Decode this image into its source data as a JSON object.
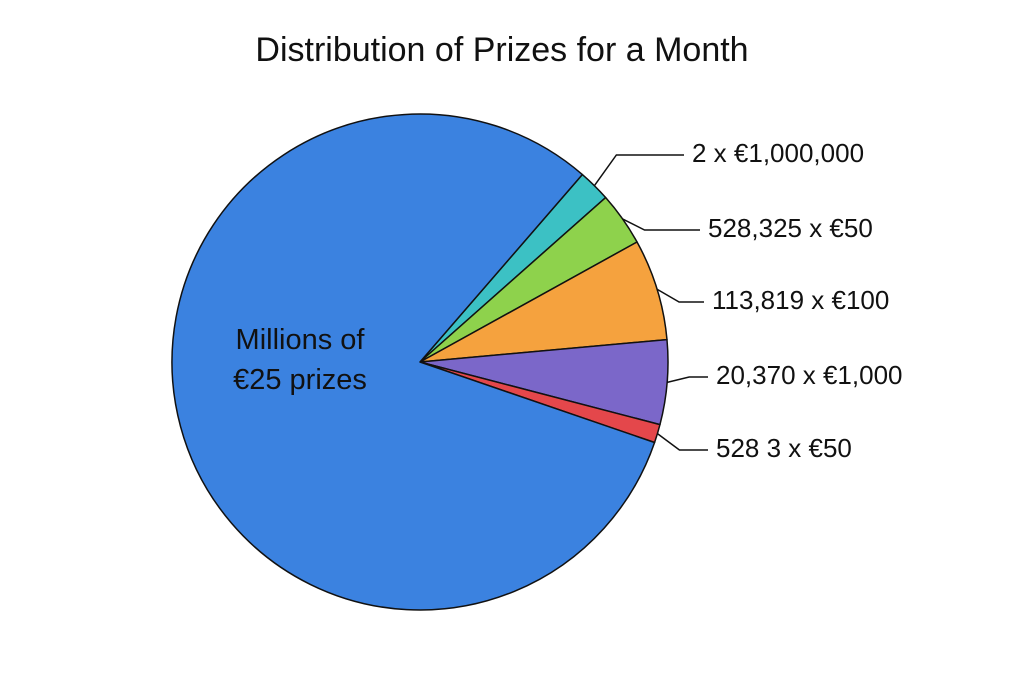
{
  "chart_data": {
    "type": "pie",
    "title": "Distribution of Prizes for a Month",
    "categories": [
      "2 x €1,000,000",
      "528,325 x €50",
      "113,819 x €100",
      "20,370 x €1,000",
      "528 3 x €50",
      "Millions of €25 prizes"
    ],
    "values": [
      2.1,
      3.5,
      6.6,
      5.5,
      1.2,
      81.1
    ],
    "colors": [
      "#3cc1c4",
      "#8ed24c",
      "#f5a23e",
      "#7b67c9",
      "#e4474b",
      "#3b82e0"
    ]
  }
}
